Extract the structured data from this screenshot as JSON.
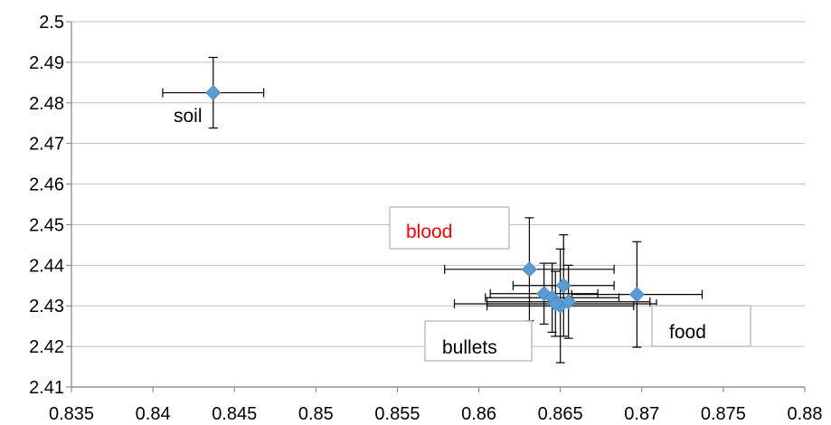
{
  "chart_data": {
    "type": "scatter",
    "title": "",
    "xlabel": "",
    "ylabel": "",
    "xlim": [
      0.835,
      0.88
    ],
    "ylim": [
      2.41,
      2.5
    ],
    "x_ticks": [
      "0.835",
      "0.84",
      "0.845",
      "0.85",
      "0.855",
      "0.86",
      "0.865",
      "0.87",
      "0.875",
      "0.88"
    ],
    "y_ticks": [
      "2.41",
      "2.42",
      "2.43",
      "2.44",
      "2.45",
      "2.46",
      "2.47",
      "2.48",
      "2.49",
      "2.5"
    ],
    "grid": "horizontal",
    "marker_color": "#5b9bd5",
    "gridline_color": "#bfbfbf",
    "points": [
      {
        "x": 0.8437,
        "y": 2.4825,
        "xerr": 0.0031,
        "yerr": 0.0087
      },
      {
        "x": 0.8631,
        "y": 2.439,
        "xerr": 0.0052,
        "yerr": 0.0127
      },
      {
        "x": 0.8652,
        "y": 2.435,
        "xerr": 0.0031,
        "yerr": 0.0125
      },
      {
        "x": 0.8697,
        "y": 2.4328,
        "xerr": 0.004,
        "yerr": 0.013
      },
      {
        "x": 0.864,
        "y": 2.433,
        "xerr": 0.0033,
        "yerr": 0.0075
      },
      {
        "x": 0.8645,
        "y": 2.432,
        "xerr": 0.0041,
        "yerr": 0.0085
      },
      {
        "x": 0.865,
        "y": 2.43,
        "xerr": 0.0045,
        "yerr": 0.014
      },
      {
        "x": 0.8655,
        "y": 2.431,
        "xerr": 0.005,
        "yerr": 0.009
      },
      {
        "x": 0.8647,
        "y": 2.4305,
        "xerr": 0.0062,
        "yerr": 0.008
      }
    ],
    "annotations": [
      {
        "text": "soil",
        "color": "#000000",
        "boxed": false
      },
      {
        "text": "blood",
        "color": "#ff0000",
        "boxed": true
      },
      {
        "text": "bullets",
        "color": "#000000",
        "boxed": true
      },
      {
        "text": "food",
        "color": "#000000",
        "boxed": true
      }
    ]
  }
}
